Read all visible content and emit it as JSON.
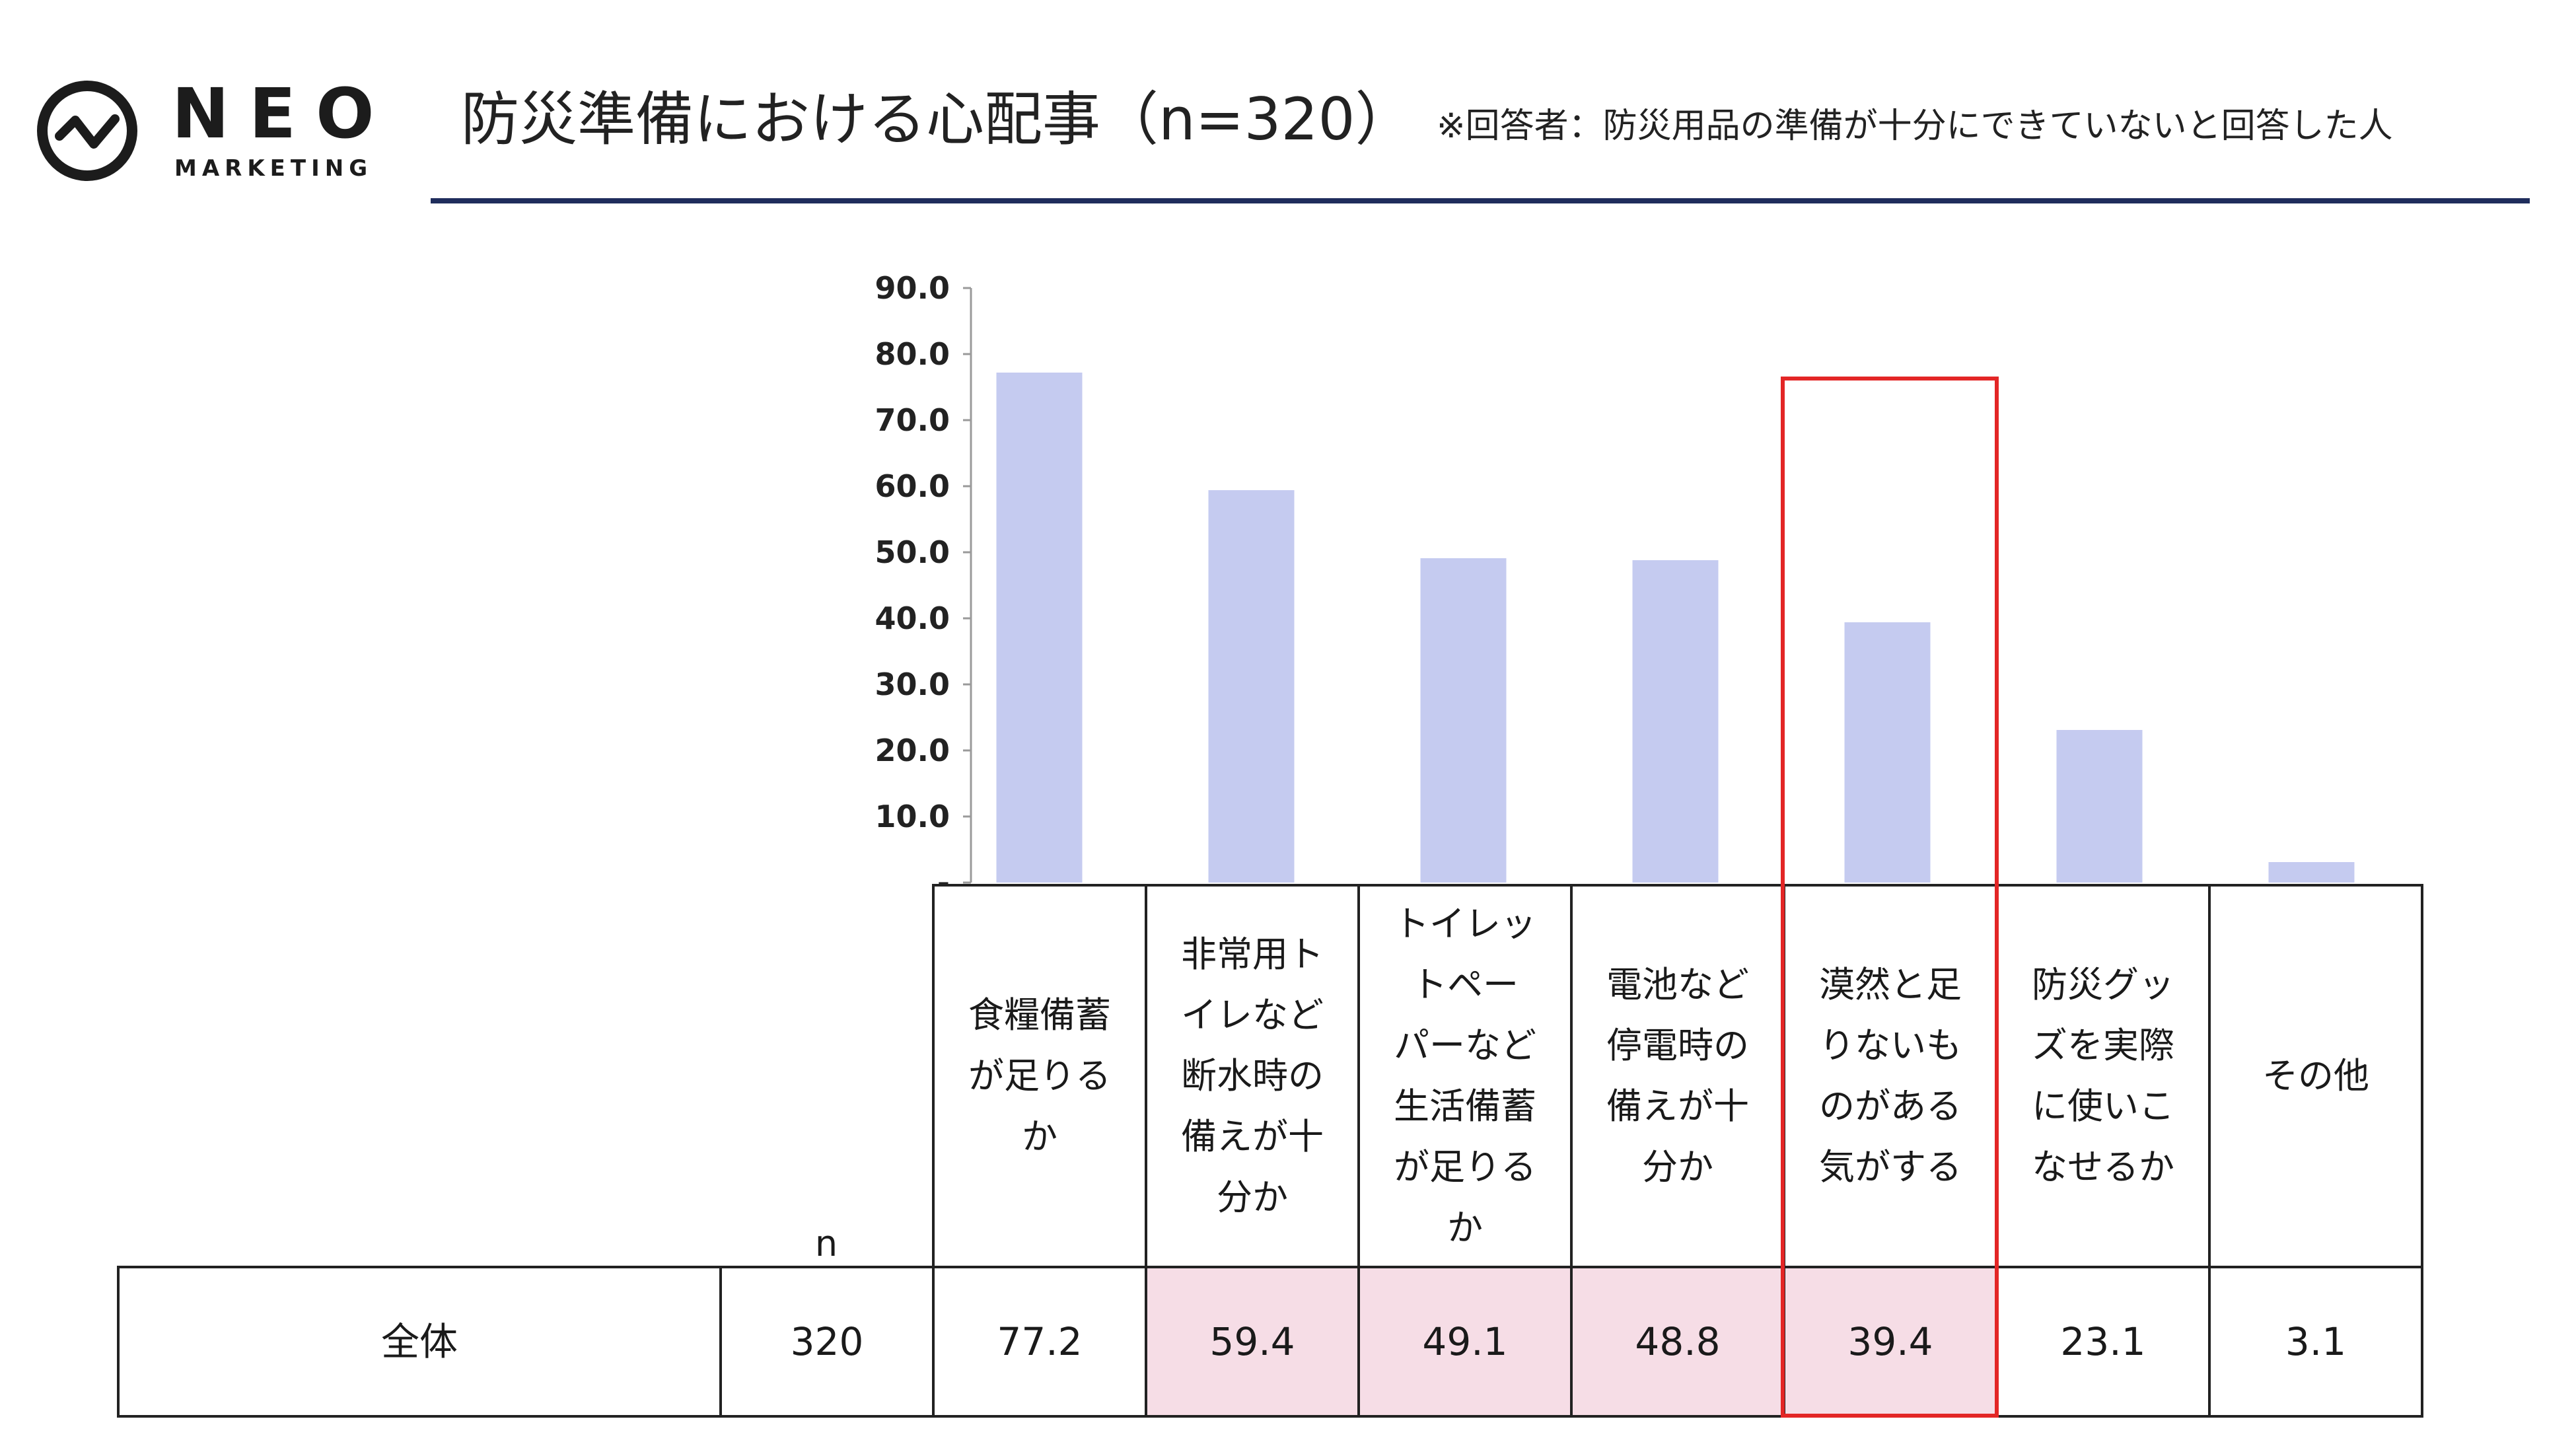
{
  "brand": {
    "name": "NEO",
    "sub": "MARKETING",
    "logo_icon": "pulse-circle-icon",
    "accent_color": "#1f2d5c"
  },
  "header": {
    "title": "防災準備における心配事（n=320）",
    "note": "※回答者：防災用品の準備が十分にできていないと回答した人"
  },
  "chart_data": {
    "type": "bar",
    "categories": [
      "食糧備蓄が足りるか",
      "非常用トイレなど断水時の備えが十分か",
      "トイレットペーパーなど生活備蓄が足りるか",
      "電池など停電時の備えが十分か",
      "漠然と足りないものがある気がする",
      "防災グッズを実際に使いこなせるか",
      "その他"
    ],
    "values": [
      77.2,
      59.4,
      49.1,
      48.8,
      39.4,
      23.1,
      3.1
    ],
    "ylim": [
      0,
      90
    ],
    "yticks": [
      "-",
      "10.0",
      "20.0",
      "30.0",
      "40.0",
      "50.0",
      "60.0",
      "70.0",
      "80.0",
      "90.0"
    ],
    "bar_color": "#c5cbf0",
    "highlight_index": 4,
    "highlight_color": "#e32626"
  },
  "table": {
    "n_header": "n",
    "category_lines": [
      [
        "食糧備蓄",
        "が足りる",
        "か"
      ],
      [
        "非常用ト",
        "イレなど",
        "断水時の",
        "備えが十",
        "分か"
      ],
      [
        "トイレッ",
        "トペー",
        "パーなど",
        "生活備蓄",
        "が足りる",
        "か"
      ],
      [
        "電池など",
        "停電時の",
        "備えが十",
        "分か"
      ],
      [
        "漠然と足",
        "りないも",
        "のがある",
        "気がする"
      ],
      [
        "防災グッ",
        "ズを実際",
        "に使いこ",
        "なせるか"
      ],
      [
        "その他"
      ]
    ],
    "row": {
      "label": "全体",
      "n": "320",
      "values": [
        "77.2",
        "59.4",
        "49.1",
        "48.8",
        "39.4",
        "23.1",
        "3.1"
      ]
    },
    "highlight_cells": [
      1,
      2,
      3,
      4
    ],
    "highlight_color": "#f6dde6"
  }
}
